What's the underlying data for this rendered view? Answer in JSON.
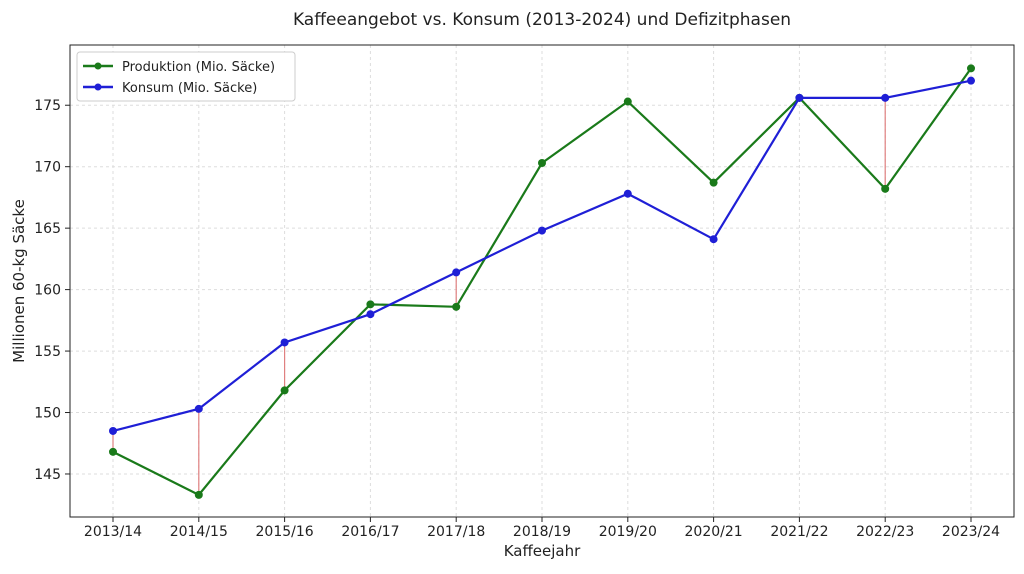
{
  "chart_data": {
    "type": "line",
    "title": "Kaffeeangebot vs. Konsum (2013-2024) und Defizitphasen",
    "xlabel": "Kaffeejahr",
    "ylabel": "Millionen 60-kg Säcke",
    "categories": [
      "2013/14",
      "2014/15",
      "2015/16",
      "2016/17",
      "2017/18",
      "2018/19",
      "2019/20",
      "2020/21",
      "2021/22",
      "2022/23",
      "2023/24"
    ],
    "series": [
      {
        "name": "Produktion (Mio. Säcke)",
        "color": "#1a7a1a",
        "values": [
          146.8,
          143.3,
          151.8,
          158.8,
          158.6,
          170.3,
          175.3,
          168.7,
          175.6,
          168.2,
          178.0
        ]
      },
      {
        "name": "Konsum (Mio. Säcke)",
        "color": "#1f1fd6",
        "values": [
          148.5,
          150.3,
          155.7,
          158.0,
          161.4,
          164.8,
          167.8,
          164.1,
          175.6,
          175.6,
          177.0
        ]
      }
    ],
    "deficit_color": "#e08080",
    "yticks": [
      145,
      150,
      155,
      160,
      165,
      170,
      175
    ],
    "ylim": [
      141.5,
      179.9
    ],
    "grid": true,
    "legend": "top-left"
  }
}
